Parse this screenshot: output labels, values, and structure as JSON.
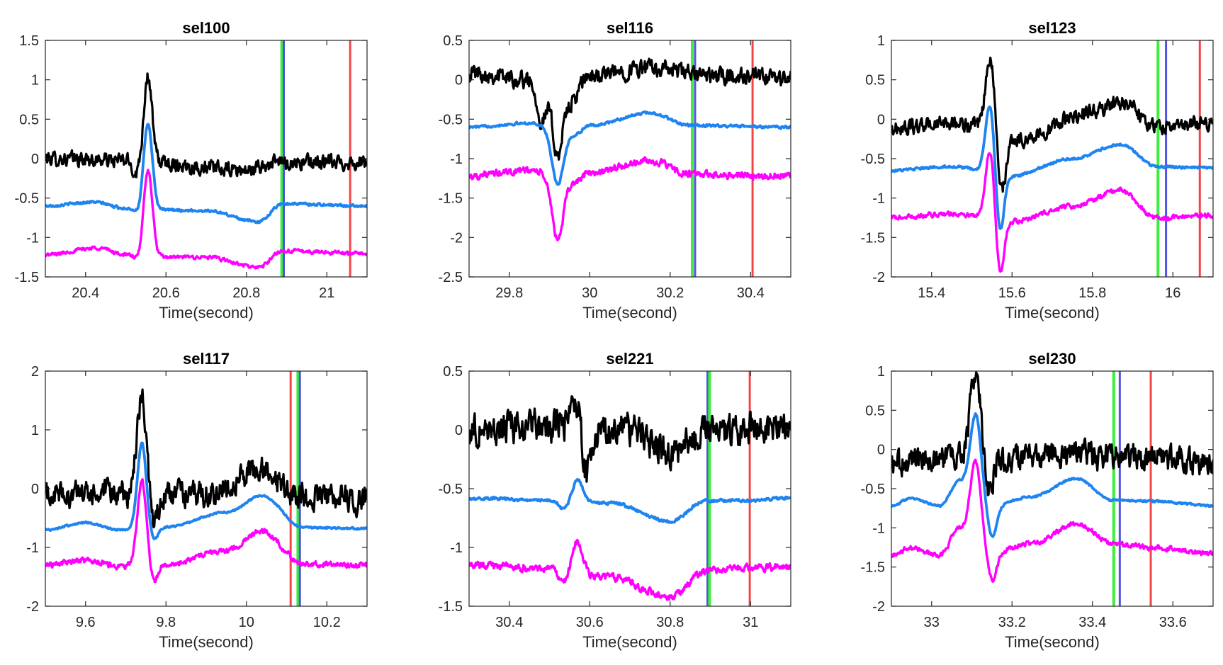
{
  "figure": {
    "xlabel": "Time(second)",
    "colors": {
      "black_trace": "#000000",
      "blue_trace": "#1f84f0",
      "magenta_trace": "#ff00ff",
      "green_marker": "#33ee33",
      "blue_marker": "#4040e0",
      "red_marker": "#f03c3c",
      "axis": "#262626"
    }
  },
  "chart_data": [
    {
      "type": "line",
      "title": "sel100",
      "xlabel": "Time(second)",
      "ylabel": "",
      "xlim": [
        20.3,
        21.1
      ],
      "ylim": [
        -1.5,
        1.5
      ],
      "xticks": [
        20.4,
        20.6,
        20.8,
        21
      ],
      "xtick_labels": [
        "20.4",
        "20.6",
        "20.8",
        "21"
      ],
      "yticks": [
        -1.5,
        -1,
        -0.5,
        0,
        0.5,
        1,
        1.5
      ],
      "ytick_labels": [
        "-1.5",
        "-1",
        "-0.5",
        "0",
        "0.5",
        "1",
        "1.5"
      ],
      "spike_center": 20.555,
      "vlines": [
        {
          "name": "green",
          "x": 20.888
        },
        {
          "name": "blue",
          "x": 20.893
        },
        {
          "name": "red",
          "x": 21.058
        }
      ],
      "series": [
        {
          "name": "black",
          "base": 0.0,
          "noise": 0.06,
          "peak": 1.05,
          "peak_width": 0.01,
          "dip": -0.2,
          "dip_offset": -0.03,
          "drift": [
            [
              20.3,
              0.0
            ],
            [
              20.5,
              -0.02
            ],
            [
              20.8,
              -0.15
            ],
            [
              20.88,
              -0.05
            ],
            [
              21.1,
              -0.05
            ]
          ]
        },
        {
          "name": "blue",
          "base": -0.6,
          "noise": 0.01,
          "peak": 0.45,
          "peak_width": 0.011,
          "dip": -0.72,
          "dip_offset": -0.02,
          "drift": [
            [
              20.3,
              -0.6
            ],
            [
              20.42,
              -0.55
            ],
            [
              20.5,
              -0.63
            ],
            [
              20.58,
              -0.65
            ],
            [
              20.7,
              -0.66
            ],
            [
              20.83,
              -0.8
            ],
            [
              20.89,
              -0.57
            ],
            [
              21.1,
              -0.6
            ]
          ]
        },
        {
          "name": "magenta",
          "base": -1.22,
          "noise": 0.015,
          "peak": -0.13,
          "peak_width": 0.011,
          "dip": -1.33,
          "dip_offset": -0.02,
          "drift": [
            [
              20.3,
              -1.22
            ],
            [
              20.43,
              -1.13
            ],
            [
              20.5,
              -1.22
            ],
            [
              20.6,
              -1.25
            ],
            [
              20.7,
              -1.25
            ],
            [
              20.83,
              -1.38
            ],
            [
              20.89,
              -1.17
            ],
            [
              21.1,
              -1.2
            ]
          ]
        }
      ]
    },
    {
      "type": "line",
      "title": "sel116",
      "xlabel": "Time(second)",
      "ylabel": "",
      "xlim": [
        29.7,
        30.5
      ],
      "ylim": [
        -2.5,
        0.5
      ],
      "xticks": [
        29.8,
        30,
        30.2,
        30.4
      ],
      "xtick_labels": [
        "29.8",
        "30",
        "30.2",
        "30.4"
      ],
      "yticks": [
        -2.5,
        -2,
        -1.5,
        -1,
        -0.5,
        0,
        0.5
      ],
      "ytick_labels": [
        "-2.5",
        "-2",
        "-1.5",
        "-1",
        "-0.5",
        "0",
        "0.5"
      ],
      "spike_center": 29.92,
      "vlines": [
        {
          "name": "green",
          "x": 30.255
        },
        {
          "name": "blue",
          "x": 30.262
        },
        {
          "name": "red",
          "x": 30.405
        }
      ],
      "series": [
        {
          "name": "black",
          "base": 0.05,
          "noise": 0.07,
          "peak": -0.95,
          "peak_width": 0.012,
          "dip": -0.7,
          "dip_offset": -0.04,
          "drift": [
            [
              29.7,
              0.1
            ],
            [
              29.85,
              0.0
            ],
            [
              29.95,
              -0.3
            ],
            [
              30.0,
              0.05
            ],
            [
              30.15,
              0.15
            ],
            [
              30.3,
              0.05
            ],
            [
              30.5,
              0.02
            ]
          ]
        },
        {
          "name": "blue",
          "base": -0.6,
          "noise": 0.01,
          "peak": -1.33,
          "peak_width": 0.014,
          "dip": -0.6,
          "dip_offset": 0.0,
          "drift": [
            [
              29.7,
              -0.6
            ],
            [
              29.85,
              -0.55
            ],
            [
              29.96,
              -0.7
            ],
            [
              30.0,
              -0.58
            ],
            [
              30.15,
              -0.42
            ],
            [
              30.25,
              -0.58
            ],
            [
              30.5,
              -0.6
            ]
          ]
        },
        {
          "name": "magenta",
          "base": -1.2,
          "noise": 0.03,
          "peak": -2.02,
          "peak_width": 0.014,
          "dip": -1.2,
          "dip_offset": 0.0,
          "drift": [
            [
              29.7,
              -1.22
            ],
            [
              29.85,
              -1.15
            ],
            [
              29.96,
              -1.3
            ],
            [
              30.0,
              -1.18
            ],
            [
              30.15,
              -1.03
            ],
            [
              30.25,
              -1.2
            ],
            [
              30.5,
              -1.22
            ]
          ]
        }
      ]
    },
    {
      "type": "line",
      "title": "sel123",
      "xlabel": "Time(second)",
      "ylabel": "",
      "xlim": [
        15.3,
        16.1
      ],
      "ylim": [
        -2,
        1
      ],
      "xticks": [
        15.4,
        15.6,
        15.8,
        16
      ],
      "xtick_labels": [
        "15.4",
        "15.6",
        "15.8",
        "16"
      ],
      "yticks": [
        -2,
        -1.5,
        -1,
        -0.5,
        0,
        0.5,
        1
      ],
      "ytick_labels": [
        "-2",
        "-1.5",
        "-1",
        "-0.5",
        "0",
        "0.5",
        "1"
      ],
      "spike_center": 15.545,
      "vlines": [
        {
          "name": "green",
          "x": 15.963
        },
        {
          "name": "blue",
          "x": 15.983
        },
        {
          "name": "red",
          "x": 16.067
        }
      ],
      "series": [
        {
          "name": "black",
          "base": -0.1,
          "noise": 0.06,
          "peak": 0.78,
          "peak_width": 0.011,
          "dip": -0.85,
          "dip_offset": 0.03,
          "drift": [
            [
              15.3,
              -0.12
            ],
            [
              15.45,
              -0.05
            ],
            [
              15.62,
              -0.25
            ],
            [
              15.8,
              0.1
            ],
            [
              15.88,
              0.22
            ],
            [
              15.96,
              -0.1
            ],
            [
              16.1,
              -0.05
            ]
          ]
        },
        {
          "name": "blue",
          "base": -0.62,
          "noise": 0.01,
          "peak": 0.2,
          "peak_width": 0.011,
          "dip": -1.42,
          "dip_offset": 0.025,
          "drift": [
            [
              15.3,
              -0.65
            ],
            [
              15.45,
              -0.6
            ],
            [
              15.6,
              -0.72
            ],
            [
              15.75,
              -0.5
            ],
            [
              15.87,
              -0.32
            ],
            [
              15.96,
              -0.6
            ],
            [
              16.1,
              -0.62
            ]
          ]
        },
        {
          "name": "magenta",
          "base": -1.22,
          "noise": 0.02,
          "peak": -0.37,
          "peak_width": 0.011,
          "dip": -1.98,
          "dip_offset": 0.025,
          "drift": [
            [
              15.3,
              -1.25
            ],
            [
              15.45,
              -1.2
            ],
            [
              15.6,
              -1.3
            ],
            [
              15.75,
              -1.1
            ],
            [
              15.87,
              -0.9
            ],
            [
              15.96,
              -1.25
            ],
            [
              16.1,
              -1.22
            ]
          ]
        }
      ]
    },
    {
      "type": "line",
      "title": "sel117",
      "xlabel": "Time(second)",
      "ylabel": "",
      "xlim": [
        9.5,
        10.3
      ],
      "ylim": [
        -2,
        2
      ],
      "xticks": [
        9.6,
        9.8,
        10,
        10.2
      ],
      "xtick_labels": [
        "9.6",
        "9.8",
        "10",
        "10.2"
      ],
      "yticks": [
        -2,
        -1,
        0,
        1,
        2
      ],
      "ytick_labels": [
        "-2",
        "-1",
        "0",
        "1",
        "2"
      ],
      "spike_center": 9.74,
      "vlines": [
        {
          "name": "red",
          "x": 10.11
        },
        {
          "name": "green",
          "x": 10.128
        },
        {
          "name": "blue",
          "x": 10.133
        }
      ],
      "series": [
        {
          "name": "black",
          "base": -0.1,
          "noise": 0.14,
          "peak": 1.55,
          "peak_width": 0.012,
          "dip": -0.6,
          "dip_offset": 0.03,
          "drift": [
            [
              9.5,
              -0.1
            ],
            [
              9.7,
              -0.1
            ],
            [
              9.9,
              -0.1
            ],
            [
              10.04,
              0.35
            ],
            [
              10.12,
              -0.1
            ],
            [
              10.3,
              -0.2
            ]
          ]
        },
        {
          "name": "blue",
          "base": -0.68,
          "noise": 0.01,
          "peak": 0.78,
          "peak_width": 0.011,
          "dip": -0.9,
          "dip_offset": 0.03,
          "drift": [
            [
              9.5,
              -0.7
            ],
            [
              9.6,
              -0.58
            ],
            [
              9.68,
              -0.7
            ],
            [
              9.8,
              -0.65
            ],
            [
              9.95,
              -0.4
            ],
            [
              10.04,
              -0.12
            ],
            [
              10.14,
              -0.66
            ],
            [
              10.3,
              -0.68
            ]
          ]
        },
        {
          "name": "magenta",
          "base": -1.3,
          "noise": 0.03,
          "peak": 0.15,
          "peak_width": 0.011,
          "dip": -1.6,
          "dip_offset": 0.03,
          "drift": [
            [
              9.5,
              -1.3
            ],
            [
              9.6,
              -1.22
            ],
            [
              9.68,
              -1.32
            ],
            [
              9.8,
              -1.28
            ],
            [
              9.95,
              -1.05
            ],
            [
              10.04,
              -0.72
            ],
            [
              10.14,
              -1.28
            ],
            [
              10.3,
              -1.3
            ]
          ]
        }
      ]
    },
    {
      "type": "line",
      "title": "sel221",
      "xlabel": "Time(second)",
      "ylabel": "",
      "xlim": [
        30.3,
        31.1
      ],
      "ylim": [
        -1.5,
        0.5
      ],
      "xticks": [
        30.4,
        30.6,
        30.8,
        31
      ],
      "xtick_labels": [
        "30.4",
        "30.6",
        "30.8",
        "31"
      ],
      "yticks": [
        -1.5,
        -1,
        -0.5,
        0,
        0.5
      ],
      "ytick_labels": [
        "-1.5",
        "-1",
        "-0.5",
        "0",
        "0.5"
      ],
      "spike_center": 30.57,
      "vlines": [
        {
          "name": "blue",
          "x": 30.893
        },
        {
          "name": "green",
          "x": 30.898
        },
        {
          "name": "red",
          "x": 30.998
        }
      ],
      "series": [
        {
          "name": "black",
          "base": 0.0,
          "noise": 0.09,
          "peak": 0.3,
          "peak_width": 0.012,
          "dip": -0.45,
          "dip_offset": 0.02,
          "drift": [
            [
              30.3,
              0.0
            ],
            [
              30.55,
              0.05
            ],
            [
              30.7,
              0.0
            ],
            [
              30.8,
              -0.2
            ],
            [
              30.9,
              -0.02
            ],
            [
              31.1,
              0.05
            ]
          ]
        },
        {
          "name": "blue",
          "base": -0.58,
          "noise": 0.008,
          "peak": -0.42,
          "peak_width": 0.012,
          "dip": -0.68,
          "dip_offset": -0.035,
          "drift": [
            [
              30.3,
              -0.58
            ],
            [
              30.5,
              -0.6
            ],
            [
              30.65,
              -0.62
            ],
            [
              30.8,
              -0.78
            ],
            [
              30.89,
              -0.6
            ],
            [
              31.0,
              -0.6
            ],
            [
              31.1,
              -0.58
            ]
          ]
        },
        {
          "name": "magenta",
          "base": -1.17,
          "noise": 0.02,
          "peak": -0.95,
          "peak_width": 0.012,
          "dip": -1.32,
          "dip_offset": -0.035,
          "drift": [
            [
              30.3,
              -1.15
            ],
            [
              30.5,
              -1.18
            ],
            [
              30.65,
              -1.25
            ],
            [
              30.8,
              -1.42
            ],
            [
              30.89,
              -1.2
            ],
            [
              31.0,
              -1.17
            ],
            [
              31.1,
              -1.17
            ]
          ]
        }
      ]
    },
    {
      "type": "line",
      "title": "sel230",
      "xlabel": "Time(second)",
      "ylabel": "",
      "xlim": [
        32.9,
        33.7
      ],
      "ylim": [
        -2,
        1
      ],
      "xticks": [
        33,
        33.2,
        33.4,
        33.6
      ],
      "xtick_labels": [
        "33",
        "33.2",
        "33.4",
        "33.6"
      ],
      "yticks": [
        -2,
        -1.5,
        -1,
        -0.5,
        0,
        0.5,
        1
      ],
      "ytick_labels": [
        "-2",
        "-1.5",
        "-1",
        "-0.5",
        "0",
        "0.5",
        "1"
      ],
      "spike_center": 33.11,
      "vlines": [
        {
          "name": "green",
          "x": 33.453
        },
        {
          "name": "blue",
          "x": 33.468
        },
        {
          "name": "red",
          "x": 33.545
        }
      ],
      "series": [
        {
          "name": "black",
          "base": -0.1,
          "noise": 0.11,
          "peak": 1.05,
          "peak_width": 0.013,
          "dip": -0.55,
          "dip_offset": 0.03,
          "drift": [
            [
              32.9,
              -0.2
            ],
            [
              33.0,
              -0.1
            ],
            [
              33.2,
              -0.1
            ],
            [
              33.35,
              -0.05
            ],
            [
              33.5,
              -0.1
            ],
            [
              33.7,
              -0.15
            ]
          ]
        },
        {
          "name": "blue",
          "base": -0.65,
          "noise": 0.008,
          "peak": 0.45,
          "peak_width": 0.013,
          "dip": -0.95,
          "dip_offset": 0.04,
          "drift": [
            [
              32.9,
              -0.72
            ],
            [
              32.95,
              -0.62
            ],
            [
              33.02,
              -0.72
            ],
            [
              33.07,
              -0.4
            ],
            [
              33.16,
              -0.7
            ],
            [
              33.25,
              -0.6
            ],
            [
              33.36,
              -0.37
            ],
            [
              33.45,
              -0.65
            ],
            [
              33.55,
              -0.66
            ],
            [
              33.7,
              -0.72
            ]
          ]
        },
        {
          "name": "magenta",
          "base": -1.3,
          "noise": 0.02,
          "peak": -0.15,
          "peak_width": 0.013,
          "dip": -1.5,
          "dip_offset": 0.04,
          "drift": [
            [
              32.9,
              -1.35
            ],
            [
              32.95,
              -1.25
            ],
            [
              33.02,
              -1.35
            ],
            [
              33.07,
              -1.0
            ],
            [
              33.16,
              -1.3
            ],
            [
              33.25,
              -1.2
            ],
            [
              33.36,
              -0.95
            ],
            [
              33.45,
              -1.2
            ],
            [
              33.55,
              -1.25
            ],
            [
              33.7,
              -1.33
            ]
          ]
        }
      ]
    }
  ]
}
